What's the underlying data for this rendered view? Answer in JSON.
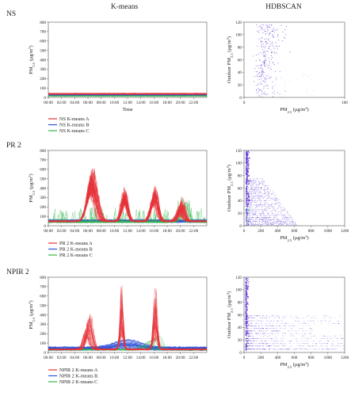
{
  "column_headers": {
    "kmeans": "K-means",
    "hdbscan": "HDBSCAN"
  },
  "time_ticks": [
    "00:00",
    "02:00",
    "04:00",
    "06:00",
    "08:00",
    "10:00",
    "12:00",
    "14:00",
    "16:00",
    "18:00",
    "20:00",
    "22:00"
  ],
  "colors": {
    "A": "#e8333a",
    "B": "#2f52d8",
    "C": "#33b84a",
    "hdbscan": "#5a2fd0"
  },
  "rows": [
    {
      "id": "ns",
      "label": "NS",
      "kmeans": {
        "ylabel": "PM2.5 (μg/m³)",
        "xlabel": "Time",
        "y_ticks": [
          "0",
          "100",
          "200",
          "300",
          "400",
          "500",
          "600",
          "700",
          "800"
        ],
        "legend": [
          "NS K-means A",
          "NS K-means B",
          "NS K-means C"
        ]
      },
      "hdbscan": {
        "ylabel": "Outdoor PM2.5 (μg/m³)",
        "xlabel": "PM2.5 (μg/m³)",
        "y_ticks": [
          "0",
          "20",
          "40",
          "60",
          "80",
          "100",
          "120"
        ],
        "x_ticks": [
          "0",
          "100"
        ]
      }
    },
    {
      "id": "pr2",
      "label": "PR 2",
      "kmeans": {
        "ylabel": "PM2.5 (μg/m³)",
        "xlabel": "",
        "y_ticks": [
          "0",
          "100",
          "200",
          "300",
          "400",
          "500",
          "600",
          "700",
          "800"
        ],
        "legend": [
          "PR 2 K-means A",
          "PR 2 K-means B",
          "PR 2 K-means C"
        ]
      },
      "hdbscan": {
        "ylabel": "Outdoor PM2.5 (μg/m³)",
        "xlabel": "PM2.5 (μg/m³)",
        "y_ticks": [
          "0",
          "20",
          "40",
          "60",
          "80",
          "100",
          "120"
        ],
        "x_ticks": [
          "0",
          "200",
          "400",
          "600",
          "800",
          "1000",
          "1200"
        ]
      }
    },
    {
      "id": "npir2",
      "label": "NPIR 2",
      "kmeans": {
        "ylabel": "PM2.5 (μg/m³)",
        "xlabel": "",
        "y_ticks": [
          "0",
          "100",
          "200",
          "300",
          "400",
          "500",
          "600",
          "700",
          "800"
        ],
        "legend": [
          "NPIR 2 K-means A",
          "NPIR 2 K-means B",
          "NPIR 2 K-means C"
        ]
      },
      "hdbscan": {
        "ylabel": "Outdoor PM2.5 (μg/m³)",
        "xlabel": "PM2.5 (μg/m³)",
        "y_ticks": [
          "0",
          "20",
          "40",
          "60",
          "80",
          "100",
          "120"
        ],
        "x_ticks": [
          "0",
          "200",
          "400",
          "600",
          "800",
          "1000",
          "1200"
        ]
      }
    }
  ],
  "chart_data": [
    {
      "type": "line",
      "panel": "NS K-means",
      "x_range": [
        0,
        24
      ],
      "ylim": [
        0,
        800
      ],
      "series": [
        {
          "name": "NS K-means A",
          "typical_range": [
            20,
            60
          ]
        },
        {
          "name": "NS K-means B",
          "typical_range": [
            10,
            30
          ]
        },
        {
          "name": "NS K-means C",
          "typical_range": [
            5,
            20
          ]
        }
      ]
    },
    {
      "type": "scatter",
      "panel": "NS HDBSCAN",
      "xlim": [
        0,
        100
      ],
      "ylim": [
        0,
        120
      ],
      "cluster_x_range": [
        0,
        80
      ],
      "cluster_y_range": [
        0,
        118
      ]
    },
    {
      "type": "line",
      "panel": "PR 2 K-means",
      "x_range": [
        0,
        24
      ],
      "ylim": [
        0,
        800
      ],
      "series": [
        {
          "name": "PR 2 K-means A",
          "peaks": [
            {
              "time": 6.5,
              "value": 600
            },
            {
              "time": 11.5,
              "value": 400
            },
            {
              "time": 16,
              "value": 400
            },
            {
              "time": 20,
              "value": 280
            }
          ]
        },
        {
          "name": "PR 2 K-means B",
          "typical_range": [
            20,
            60
          ]
        },
        {
          "name": "PR 2 K-means C",
          "typical_range": [
            30,
            280
          ]
        }
      ]
    },
    {
      "type": "scatter",
      "panel": "PR 2 HDBSCAN",
      "xlim": [
        0,
        1200
      ],
      "ylim": [
        0,
        120
      ],
      "cluster_x_range": [
        0,
        620
      ],
      "cluster_y_range": [
        0,
        120
      ]
    },
    {
      "type": "line",
      "panel": "NPIR 2 K-means",
      "x_range": [
        0,
        24
      ],
      "ylim": [
        0,
        800
      ],
      "series": [
        {
          "name": "NPIR 2 K-means A",
          "peaks": [
            {
              "time": 6,
              "value": 430
            },
            {
              "time": 11,
              "value": 760
            },
            {
              "time": 16,
              "value": 740
            }
          ]
        },
        {
          "name": "NPIR 2 K-means B",
          "typical_range": [
            10,
            60
          ]
        },
        {
          "name": "NPIR 2 K-means C",
          "typical_range": [
            10,
            200
          ]
        }
      ]
    },
    {
      "type": "scatter",
      "panel": "NPIR 2 HDBSCAN",
      "xlim": [
        0,
        1200
      ],
      "ylim": [
        0,
        120
      ],
      "cluster_x_range": [
        0,
        1200
      ],
      "cluster_y_range": [
        0,
        120
      ]
    }
  ]
}
